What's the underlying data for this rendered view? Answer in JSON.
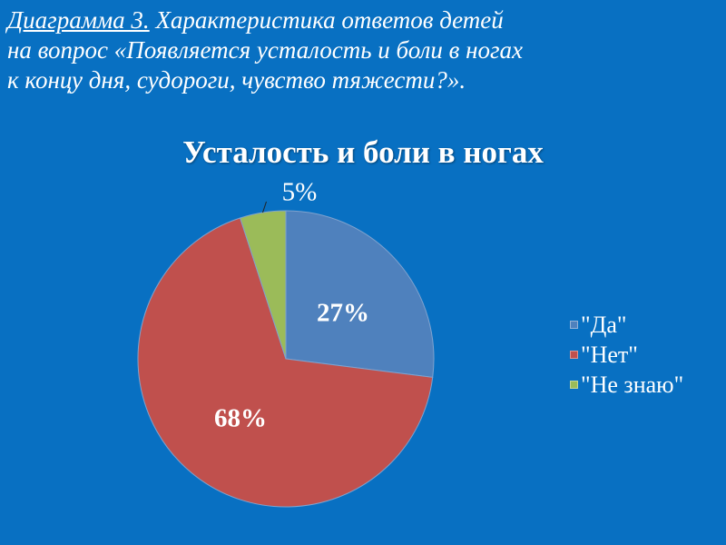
{
  "heading": {
    "label": "Диаграмма 3.",
    "lines": [
      " Характеристика ответов детей",
      "на вопрос «Появляется усталость и боли в ногах",
      "к концу дня, судороги, чувство тяжести?»."
    ]
  },
  "chart_data": {
    "type": "pie",
    "title": "Усталость и боли в ногах",
    "categories": [
      "\"Да\"",
      "\"Нет\"",
      "\"Не знаю\""
    ],
    "values": [
      27,
      68,
      5
    ],
    "data_labels": [
      "27%",
      "68%",
      "5%"
    ],
    "colors": [
      "#4f81bd",
      "#c0504d",
      "#9bbb59"
    ],
    "start": "top, clockwise",
    "legend_position": "right"
  },
  "background_color": "#0870c2"
}
